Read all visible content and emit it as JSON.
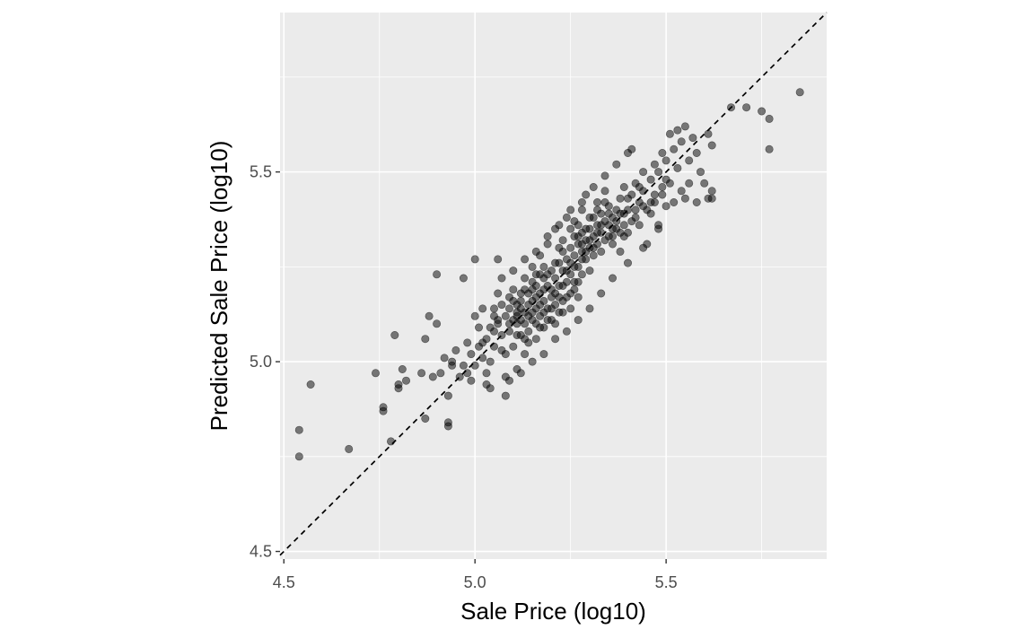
{
  "chart_data": {
    "type": "scatter",
    "title": "",
    "xlabel": "Sale Price (log10)",
    "ylabel": "Predicted Sale Price (log10)",
    "xlim": [
      4.49,
      5.92
    ],
    "ylim": [
      4.48,
      5.92
    ],
    "x_ticks": [
      "4.5",
      "5.0",
      "5.5"
    ],
    "y_ticks": [
      "4.5",
      "5.0",
      "5.5"
    ],
    "x_tick_values": [
      4.5,
      5.0,
      5.5
    ],
    "y_tick_values": [
      4.5,
      5.0,
      5.5
    ],
    "x_minor_values": [
      4.75,
      5.25,
      5.75
    ],
    "y_minor_values": [
      4.75,
      5.25,
      5.75
    ],
    "grid": true,
    "reference_line": {
      "type": "identity",
      "style": "dashed",
      "color": "#000000"
    },
    "colors": {
      "panel": "#ebebeb",
      "grid": "#ffffff",
      "point_fill": "#000000",
      "point_opacity": 0.5,
      "tick_color": "#333333"
    },
    "points": [
      [
        4.54,
        4.75
      ],
      [
        4.54,
        4.82
      ],
      [
        4.57,
        4.94
      ],
      [
        4.67,
        4.77
      ],
      [
        4.74,
        4.97
      ],
      [
        4.76,
        4.88
      ],
      [
        4.76,
        4.87
      ],
      [
        4.78,
        4.79
      ],
      [
        4.79,
        5.07
      ],
      [
        4.8,
        4.94
      ],
      [
        4.8,
        4.93
      ],
      [
        4.81,
        4.98
      ],
      [
        4.82,
        4.95
      ],
      [
        4.86,
        4.97
      ],
      [
        4.87,
        4.85
      ],
      [
        4.87,
        5.06
      ],
      [
        4.88,
        5.12
      ],
      [
        4.89,
        4.96
      ],
      [
        4.9,
        5.1
      ],
      [
        4.9,
        5.23
      ],
      [
        4.91,
        4.97
      ],
      [
        4.92,
        5.01
      ],
      [
        4.93,
        4.83
      ],
      [
        4.93,
        4.84
      ],
      [
        4.93,
        4.91
      ],
      [
        4.94,
        5.0
      ],
      [
        4.94,
        4.99
      ],
      [
        4.95,
        5.03
      ],
      [
        4.96,
        4.96
      ],
      [
        4.97,
        5.22
      ],
      [
        4.97,
        4.99
      ],
      [
        4.98,
        5.05
      ],
      [
        4.98,
        4.97
      ],
      [
        4.99,
        4.95
      ],
      [
        4.99,
        5.02
      ],
      [
        5.0,
        5.12
      ],
      [
        5.01,
        5.09
      ],
      [
        5.0,
        5.27
      ],
      [
        5.02,
        5.14
      ],
      [
        5.02,
        5.05
      ],
      [
        5.03,
        4.97
      ],
      [
        5.03,
        4.94
      ],
      [
        5.04,
        4.93
      ],
      [
        5.04,
        5.0
      ],
      [
        5.05,
        5.08
      ],
      [
        5.05,
        5.12
      ],
      [
        5.06,
        5.27
      ],
      [
        5.06,
        5.18
      ],
      [
        5.07,
        5.15
      ],
      [
        5.07,
        5.03
      ],
      [
        5.08,
        4.96
      ],
      [
        5.08,
        4.91
      ],
      [
        5.09,
        5.08
      ],
      [
        5.09,
        5.14
      ],
      [
        5.1,
        5.16
      ],
      [
        5.1,
        5.04
      ],
      [
        5.11,
        5.1
      ],
      [
        5.11,
        5.12
      ],
      [
        5.11,
        4.98
      ],
      [
        5.12,
        5.18
      ],
      [
        5.12,
        5.07
      ],
      [
        5.13,
        5.13
      ],
      [
        5.13,
        5.02
      ],
      [
        5.13,
        5.22
      ],
      [
        5.14,
        5.08
      ],
      [
        5.14,
        5.15
      ],
      [
        5.15,
        5.11
      ],
      [
        5.15,
        5.19
      ],
      [
        5.15,
        5.25
      ],
      [
        5.16,
        5.14
      ],
      [
        5.16,
        5.06
      ],
      [
        5.16,
        5.2
      ],
      [
        5.17,
        5.12
      ],
      [
        5.17,
        5.18
      ],
      [
        5.17,
        5.28
      ],
      [
        5.18,
        5.16
      ],
      [
        5.18,
        5.22
      ],
      [
        5.18,
        5.09
      ],
      [
        5.19,
        5.2
      ],
      [
        5.19,
        5.14
      ],
      [
        5.19,
        5.31
      ],
      [
        5.2,
        5.24
      ],
      [
        5.2,
        5.17
      ],
      [
        5.2,
        5.11
      ],
      [
        5.21,
        5.22
      ],
      [
        5.21,
        5.18
      ],
      [
        5.21,
        5.35
      ],
      [
        5.22,
        5.26
      ],
      [
        5.22,
        5.2
      ],
      [
        5.22,
        5.13
      ],
      [
        5.23,
        5.24
      ],
      [
        5.23,
        5.29
      ],
      [
        5.23,
        5.16
      ],
      [
        5.24,
        5.21
      ],
      [
        5.24,
        5.27
      ],
      [
        5.24,
        5.38
      ],
      [
        5.25,
        5.3
      ],
      [
        5.25,
        5.23
      ],
      [
        5.25,
        5.18
      ],
      [
        5.26,
        5.28
      ],
      [
        5.26,
        5.33
      ],
      [
        5.26,
        5.25
      ],
      [
        5.27,
        5.31
      ],
      [
        5.27,
        5.36
      ],
      [
        5.27,
        5.21
      ],
      [
        5.28,
        5.29
      ],
      [
        5.28,
        5.34
      ],
      [
        5.28,
        5.4
      ],
      [
        5.29,
        5.32
      ],
      [
        5.29,
        5.27
      ],
      [
        5.29,
        5.44
      ],
      [
        5.3,
        5.35
      ],
      [
        5.3,
        5.3
      ],
      [
        5.3,
        5.24
      ],
      [
        5.31,
        5.33
      ],
      [
        5.31,
        5.38
      ],
      [
        5.31,
        5.28
      ],
      [
        5.32,
        5.36
      ],
      [
        5.32,
        5.31
      ],
      [
        5.32,
        5.42
      ],
      [
        5.33,
        5.34
      ],
      [
        5.33,
        5.39
      ],
      [
        5.34,
        5.37
      ],
      [
        5.34,
        5.32
      ],
      [
        5.34,
        5.45
      ],
      [
        5.35,
        5.36
      ],
      [
        5.35,
        5.41
      ],
      [
        5.36,
        5.38
      ],
      [
        5.36,
        5.33
      ],
      [
        5.37,
        5.4
      ],
      [
        5.37,
        5.35
      ],
      [
        5.38,
        5.43
      ],
      [
        5.38,
        5.29
      ],
      [
        5.39,
        5.36
      ],
      [
        5.39,
        5.46
      ],
      [
        5.4,
        5.4
      ],
      [
        5.4,
        5.34
      ],
      [
        5.41,
        5.44
      ],
      [
        5.41,
        5.56
      ],
      [
        5.42,
        5.38
      ],
      [
        5.42,
        5.47
      ],
      [
        5.43,
        5.42
      ],
      [
        5.43,
        5.36
      ],
      [
        5.44,
        5.45
      ],
      [
        5.44,
        5.5
      ],
      [
        5.45,
        5.4
      ],
      [
        5.45,
        5.31
      ],
      [
        5.46,
        5.48
      ],
      [
        5.46,
        5.42
      ],
      [
        5.47,
        5.52
      ],
      [
        5.47,
        5.44
      ],
      [
        5.48,
        5.36
      ],
      [
        5.48,
        5.5
      ],
      [
        5.49,
        5.46
      ],
      [
        5.49,
        5.55
      ],
      [
        5.5,
        5.41
      ],
      [
        5.5,
        5.53
      ],
      [
        5.51,
        5.6
      ],
      [
        5.51,
        5.47
      ],
      [
        5.52,
        5.42
      ],
      [
        5.52,
        5.56
      ],
      [
        5.53,
        5.61
      ],
      [
        5.53,
        5.51
      ],
      [
        5.54,
        5.45
      ],
      [
        5.54,
        5.58
      ],
      [
        5.55,
        5.62
      ],
      [
        5.56,
        5.53
      ],
      [
        5.56,
        5.47
      ],
      [
        5.57,
        5.59
      ],
      [
        5.58,
        5.42
      ],
      [
        5.58,
        5.55
      ],
      [
        5.59,
        5.5
      ],
      [
        5.6,
        5.47
      ],
      [
        5.61,
        5.43
      ],
      [
        5.61,
        5.6
      ],
      [
        5.62,
        5.43
      ],
      [
        5.62,
        5.57
      ],
      [
        5.62,
        5.45
      ],
      [
        5.67,
        5.67
      ],
      [
        5.71,
        5.67
      ],
      [
        5.75,
        5.66
      ],
      [
        5.77,
        5.64
      ],
      [
        5.77,
        5.56
      ],
      [
        5.85,
        5.71
      ],
      [
        5.55,
        5.43
      ],
      [
        5.48,
        5.35
      ],
      [
        5.44,
        5.3
      ],
      [
        5.4,
        5.26
      ],
      [
        5.36,
        5.22
      ],
      [
        5.33,
        5.18
      ],
      [
        5.3,
        5.14
      ],
      [
        5.27,
        5.11
      ],
      [
        5.24,
        5.08
      ],
      [
        5.21,
        5.06
      ],
      [
        5.18,
        5.02
      ],
      [
        5.15,
        5.0
      ],
      [
        5.12,
        4.97
      ],
      [
        5.09,
        4.95
      ],
      [
        5.07,
        5.22
      ],
      [
        5.1,
        5.24
      ],
      [
        5.13,
        5.27
      ],
      [
        5.16,
        5.29
      ],
      [
        5.19,
        5.33
      ],
      [
        5.22,
        5.36
      ],
      [
        5.25,
        5.4
      ],
      [
        5.28,
        5.42
      ],
      [
        5.31,
        5.46
      ],
      [
        5.34,
        5.49
      ],
      [
        5.37,
        5.52
      ],
      [
        5.4,
        5.55
      ],
      [
        5.2,
        5.19
      ],
      [
        5.21,
        5.15
      ],
      [
        5.19,
        5.23
      ],
      [
        5.18,
        5.19
      ],
      [
        5.17,
        5.23
      ],
      [
        5.16,
        5.17
      ],
      [
        5.15,
        5.16
      ],
      [
        5.14,
        5.12
      ],
      [
        5.13,
        5.1
      ],
      [
        5.12,
        5.14
      ],
      [
        5.11,
        5.13
      ],
      [
        5.1,
        5.11
      ],
      [
        5.09,
        5.1
      ],
      [
        5.08,
        5.12
      ],
      [
        5.07,
        5.07
      ],
      [
        5.06,
        5.11
      ],
      [
        5.05,
        5.04
      ],
      [
        5.04,
        5.09
      ],
      [
        5.03,
        5.06
      ],
      [
        5.02,
        5.01
      ],
      [
        5.01,
        5.04
      ],
      [
        5.0,
        4.99
      ],
      [
        5.23,
        5.2
      ],
      [
        5.24,
        5.24
      ],
      [
        5.25,
        5.26
      ],
      [
        5.26,
        5.21
      ],
      [
        5.27,
        5.25
      ],
      [
        5.28,
        5.27
      ],
      [
        5.29,
        5.29
      ],
      [
        5.3,
        5.32
      ],
      [
        5.31,
        5.3
      ],
      [
        5.32,
        5.34
      ],
      [
        5.33,
        5.29
      ],
      [
        5.35,
        5.33
      ],
      [
        5.36,
        5.35
      ],
      [
        5.37,
        5.37
      ],
      [
        5.38,
        5.39
      ],
      [
        5.39,
        5.33
      ],
      [
        5.41,
        5.37
      ],
      [
        5.42,
        5.4
      ],
      [
        5.43,
        5.46
      ],
      [
        5.44,
        5.41
      ],
      [
        5.46,
        5.39
      ],
      [
        5.47,
        5.42
      ],
      [
        5.49,
        5.44
      ],
      [
        5.5,
        5.48
      ],
      [
        5.14,
        5.18
      ],
      [
        5.15,
        5.21
      ],
      [
        5.16,
        5.23
      ],
      [
        5.17,
        5.15
      ],
      [
        5.18,
        5.13
      ],
      [
        5.19,
        5.11
      ],
      [
        5.2,
        5.14
      ],
      [
        5.21,
        5.26
      ],
      [
        5.22,
        5.3
      ],
      [
        5.23,
        5.32
      ],
      [
        5.25,
        5.35
      ],
      [
        5.26,
        5.37
      ],
      [
        5.27,
        5.33
      ],
      [
        5.28,
        5.31
      ],
      [
        5.29,
        5.35
      ],
      [
        5.3,
        5.38
      ],
      [
        5.32,
        5.4
      ],
      [
        5.33,
        5.36
      ],
      [
        5.34,
        5.42
      ],
      [
        5.35,
        5.39
      ],
      [
        5.36,
        5.31
      ],
      [
        5.38,
        5.34
      ],
      [
        5.39,
        5.39
      ],
      [
        5.4,
        5.43
      ],
      [
        5.11,
        5.15
      ],
      [
        5.12,
        5.11
      ],
      [
        5.13,
        5.19
      ],
      [
        5.14,
        5.05
      ],
      [
        5.15,
        5.13
      ],
      [
        5.16,
        5.1
      ],
      [
        5.17,
        5.09
      ],
      [
        5.18,
        5.25
      ],
      [
        5.05,
        5.14
      ],
      [
        5.06,
        5.1
      ],
      [
        5.08,
        5.02
      ],
      [
        5.09,
        5.17
      ],
      [
        5.1,
        5.19
      ],
      [
        5.11,
        5.07
      ],
      [
        5.12,
        5.16
      ],
      [
        5.13,
        5.06
      ],
      [
        5.21,
        5.1
      ],
      [
        5.22,
        5.17
      ],
      [
        5.23,
        5.13
      ],
      [
        5.24,
        5.17
      ],
      [
        5.25,
        5.14
      ],
      [
        5.26,
        5.19
      ],
      [
        5.27,
        5.17
      ],
      [
        5.28,
        5.23
      ]
    ]
  }
}
